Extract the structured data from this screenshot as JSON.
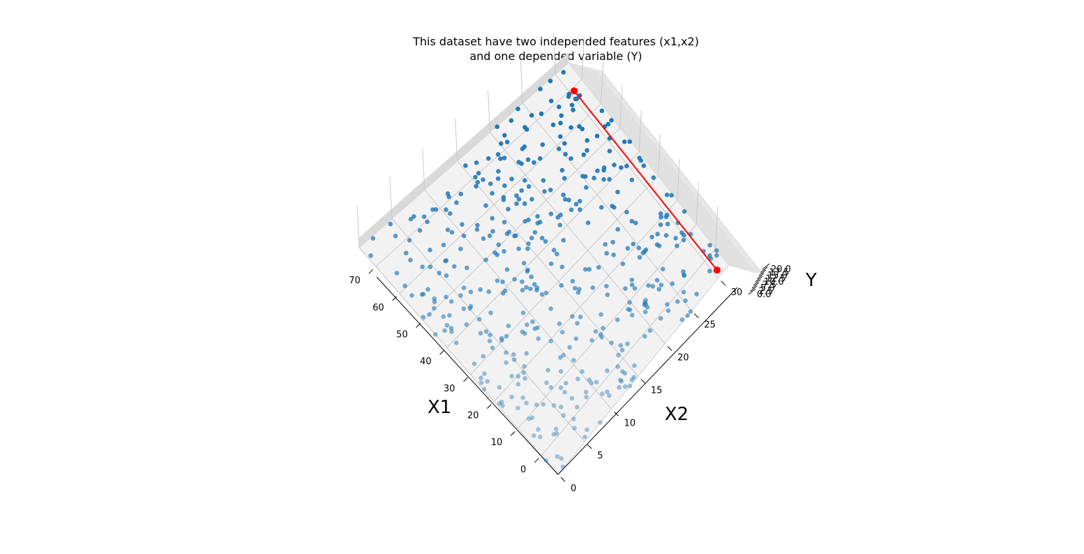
{
  "chart_data": {
    "type": "scatter",
    "projection": "3d",
    "title_line1": "This dataset have two independed features (x1,x2)",
    "title_line2": "and one depended variable (Y)",
    "xlabel": "X1",
    "ylabel": "X2",
    "zlabel": "Y",
    "xlim": [
      -7,
      77
    ],
    "ylim": [
      0,
      32
    ],
    "zlim": [
      0,
      20
    ],
    "x_ticks": [
      "0",
      "10",
      "20",
      "30",
      "40",
      "50",
      "60",
      "70"
    ],
    "y_ticks": [
      "0",
      "5",
      "10",
      "15",
      "20",
      "25",
      "30"
    ],
    "z_ticks": [
      "0.0",
      "2.5",
      "5.0",
      "7.5",
      "10.0",
      "12.5",
      "15.0",
      "17.5",
      "20.0"
    ],
    "x_tick_values": [
      0,
      10,
      20,
      30,
      40,
      50,
      60,
      70
    ],
    "y_tick_values": [
      0,
      5,
      10,
      15,
      20,
      25,
      30
    ],
    "z_tick_values": [
      0,
      2.5,
      5,
      7.5,
      10,
      12.5,
      15,
      17.5,
      20
    ],
    "scatter_color": "#1f77b4",
    "line_color": "#ff0000",
    "scatter_point_count": 450,
    "random_seed": 7,
    "regression_line": {
      "name": "line",
      "points": [
        {
          "x1": -5,
          "x2": 30.5
        },
        {
          "x1": 69,
          "x2": 30.5
        }
      ]
    }
  }
}
